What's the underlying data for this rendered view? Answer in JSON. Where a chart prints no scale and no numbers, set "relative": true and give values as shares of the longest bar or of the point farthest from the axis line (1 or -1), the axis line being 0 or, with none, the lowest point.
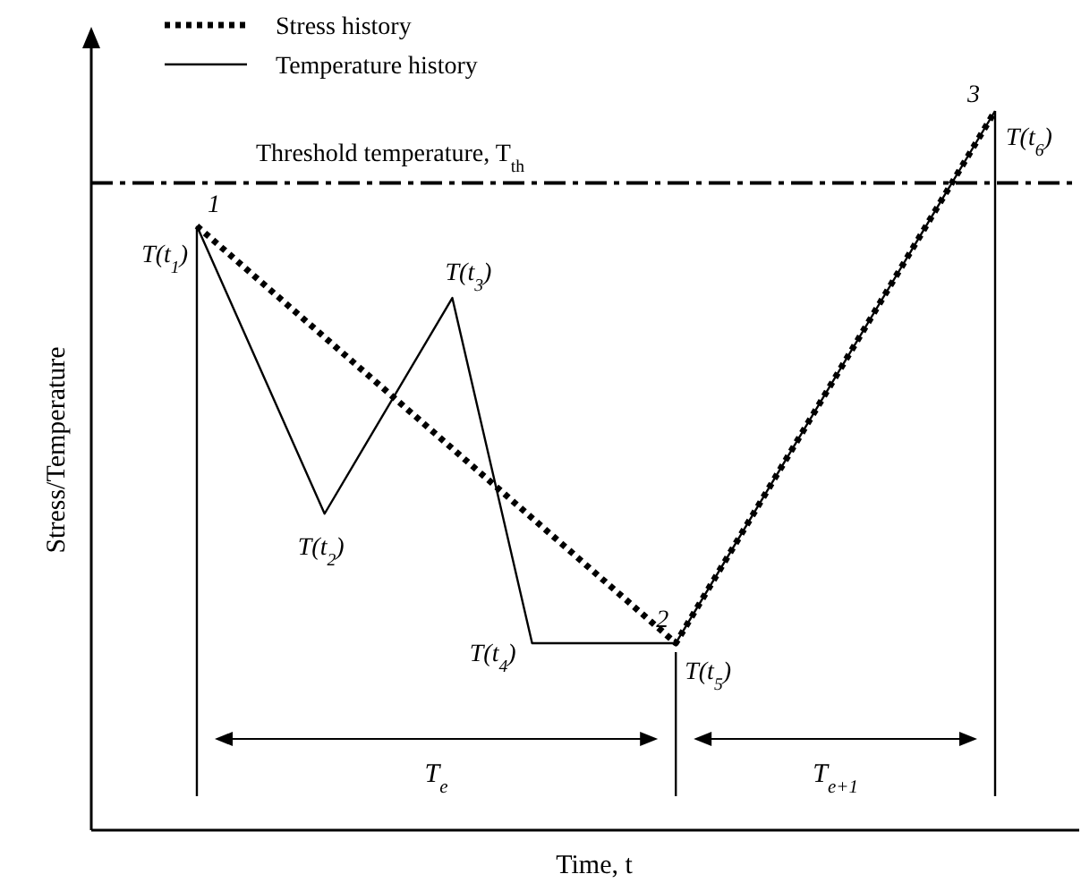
{
  "chart_data": {
    "type": "line",
    "relative": true,
    "xlabel": "Time, t",
    "ylabel": "Stress/Temperature",
    "legend": "top left",
    "categories": [
      null,
      null,
      null,
      null,
      null,
      null,
      null,
      null,
      null,
      null,
      null,
      null,
      null,
      null,
      null,
      null,
      null,
      null,
      null,
      null,
      null,
      null,
      null,
      null,
      null,
      null,
      null,
      null,
      null,
      null,
      null,
      null,
      null,
      null,
      null,
      null,
      null,
      null,
      null,
      null,
      null,
      null,
      null,
      null,
      null,
      null,
      null,
      null,
      null,
      null,
      null
    ],
    "series": [
      {
        "name": "Stress history",
        "color": "#000000",
        "line_style": "dotted",
        "values": [
          0.84,
          null,
          null,
          null,
          null,
          null,
          null,
          null,
          null,
          null,
          null,
          null,
          null,
          null,
          null,
          null,
          null,
          null,
          null,
          null,
          null,
          null,
          null,
          null,
          null,
          null,
          null,
          null,
          null,
          null,
          0.26,
          null,
          null,
          null,
          null,
          null,
          null,
          null,
          null,
          null,
          null,
          null,
          null,
          null,
          null,
          null,
          null,
          null,
          null,
          null,
          1
        ]
      },
      {
        "name": "Temperature history",
        "color": "#000000",
        "line_style": "solid",
        "values": [
          0.84,
          null,
          null,
          null,
          null,
          null,
          null,
          null,
          0.44,
          null,
          null,
          null,
          null,
          null,
          null,
          null,
          0.74,
          null,
          null,
          null,
          null,
          0.26,
          null,
          null,
          null,
          null,
          null,
          null,
          null,
          null,
          0.26,
          null,
          null,
          null,
          null,
          null,
          null,
          null,
          null,
          null,
          null,
          null,
          null,
          null,
          null,
          null,
          null,
          null,
          null,
          null,
          1
        ]
      }
    ],
    "ref_lines": [
      {
        "axis": "y",
        "value": 0.9,
        "label": "Threshold temperature, T$_{th}$",
        "line_style": "dashdot",
        "color": "#000000"
      }
    ],
    "annotations": [
      "T(t$_{1}$)",
      "T(t$_{2}$)",
      "T(t$_{3}$)",
      "T(t$_{4}$)",
      "T(t$_{5}$)",
      "T(t$_{6}$)",
      "1",
      "2",
      "3",
      "T$_{e}$",
      "T$_{e+1}$"
    ]
  }
}
